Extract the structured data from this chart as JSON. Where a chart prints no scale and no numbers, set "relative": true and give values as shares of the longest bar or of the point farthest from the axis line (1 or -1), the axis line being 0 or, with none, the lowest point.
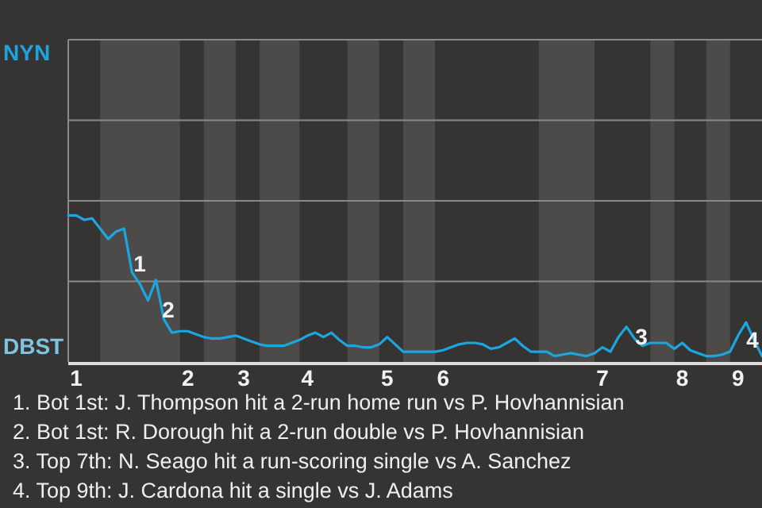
{
  "chart_data": {
    "type": "line",
    "relative": true,
    "categories": [
      null,
      "1",
      null,
      null,
      null,
      null,
      null,
      null,
      null,
      null,
      null,
      null,
      null,
      null,
      null,
      "2",
      null,
      null,
      null,
      null,
      null,
      null,
      "3",
      null,
      null,
      null,
      null,
      null,
      null,
      null,
      "4",
      null,
      null,
      null,
      null,
      null,
      null,
      null,
      null,
      null,
      "5",
      null,
      null,
      null,
      null,
      null,
      null,
      "6",
      null,
      null,
      null,
      null,
      null,
      null,
      null,
      null,
      null,
      null,
      null,
      null,
      null,
      null,
      null,
      null,
      null,
      null,
      null,
      "7",
      null,
      null,
      null,
      null,
      null,
      null,
      null,
      null,
      null,
      "8",
      null,
      null,
      null,
      null,
      null,
      null,
      "9",
      null,
      null,
      null
    ],
    "marker": "none",
    "line_style": "solid",
    "ref_lines": [
      {
        "axis": "y",
        "value": 0.55,
        "color": "#8a8986"
      },
      {
        "axis": "y",
        "value": 1.1,
        "color": "#8a8986"
      },
      {
        "axis": "y",
        "value": 1.65,
        "color": "#8a8986"
      },
      {
        "axis": "y",
        "value": 2.2,
        "color": "#8a8986"
      }
    ],
    "series": [
      {
        "color": "#1ca6e0",
        "values": [
          1,
          1,
          0.97,
          0.98,
          0.91,
          0.84,
          0.89,
          0.91,
          0.61,
          0.53,
          0.42,
          0.56,
          0.29,
          0.2,
          0.21,
          0.21,
          0.19,
          0.17,
          0.16,
          0.16,
          0.17,
          0.18,
          0.16,
          0.14,
          0.12,
          0.11,
          0.11,
          0.11,
          0.13,
          0.15,
          0.18,
          0.2,
          0.17,
          0.2,
          0.15,
          0.11,
          0.11,
          0.1,
          0.1,
          0.12,
          0.17,
          0.12,
          0.07,
          0.07,
          0.07,
          0.07,
          0.07,
          0.08,
          0.1,
          0.12,
          0.13,
          0.13,
          0.12,
          0.09,
          0.1,
          0.13,
          0.16,
          0.11,
          0.07,
          0.07,
          0.07,
          0.04,
          0.05,
          0.06,
          0.05,
          0.04,
          0.06,
          0.1,
          0.07,
          0.17,
          0.24,
          0.16,
          0.11,
          0.13,
          0.13,
          0.13,
          0.09,
          0.13,
          0.08,
          0.06,
          0.04,
          0.04,
          0.05,
          0.07,
          0.18,
          0.27,
          0.15,
          0.04
        ]
      }
    ],
    "annotations": [
      "NYN",
      "DBST",
      "1",
      "2",
      "3",
      "4",
      "1. Bot 1st: J. Thompson hit a 2-run home run vs P. Hovhannisian",
      "2. Bot 1st: R. Dorough hit a 2-run double vs P. Hovhannisian",
      "3. Top 7th: N. Seago hit a run-scoring single vs A. Sanchez",
      "4. Top 9th: J. Cardona hit a single vs J. Adams"
    ]
  }
}
